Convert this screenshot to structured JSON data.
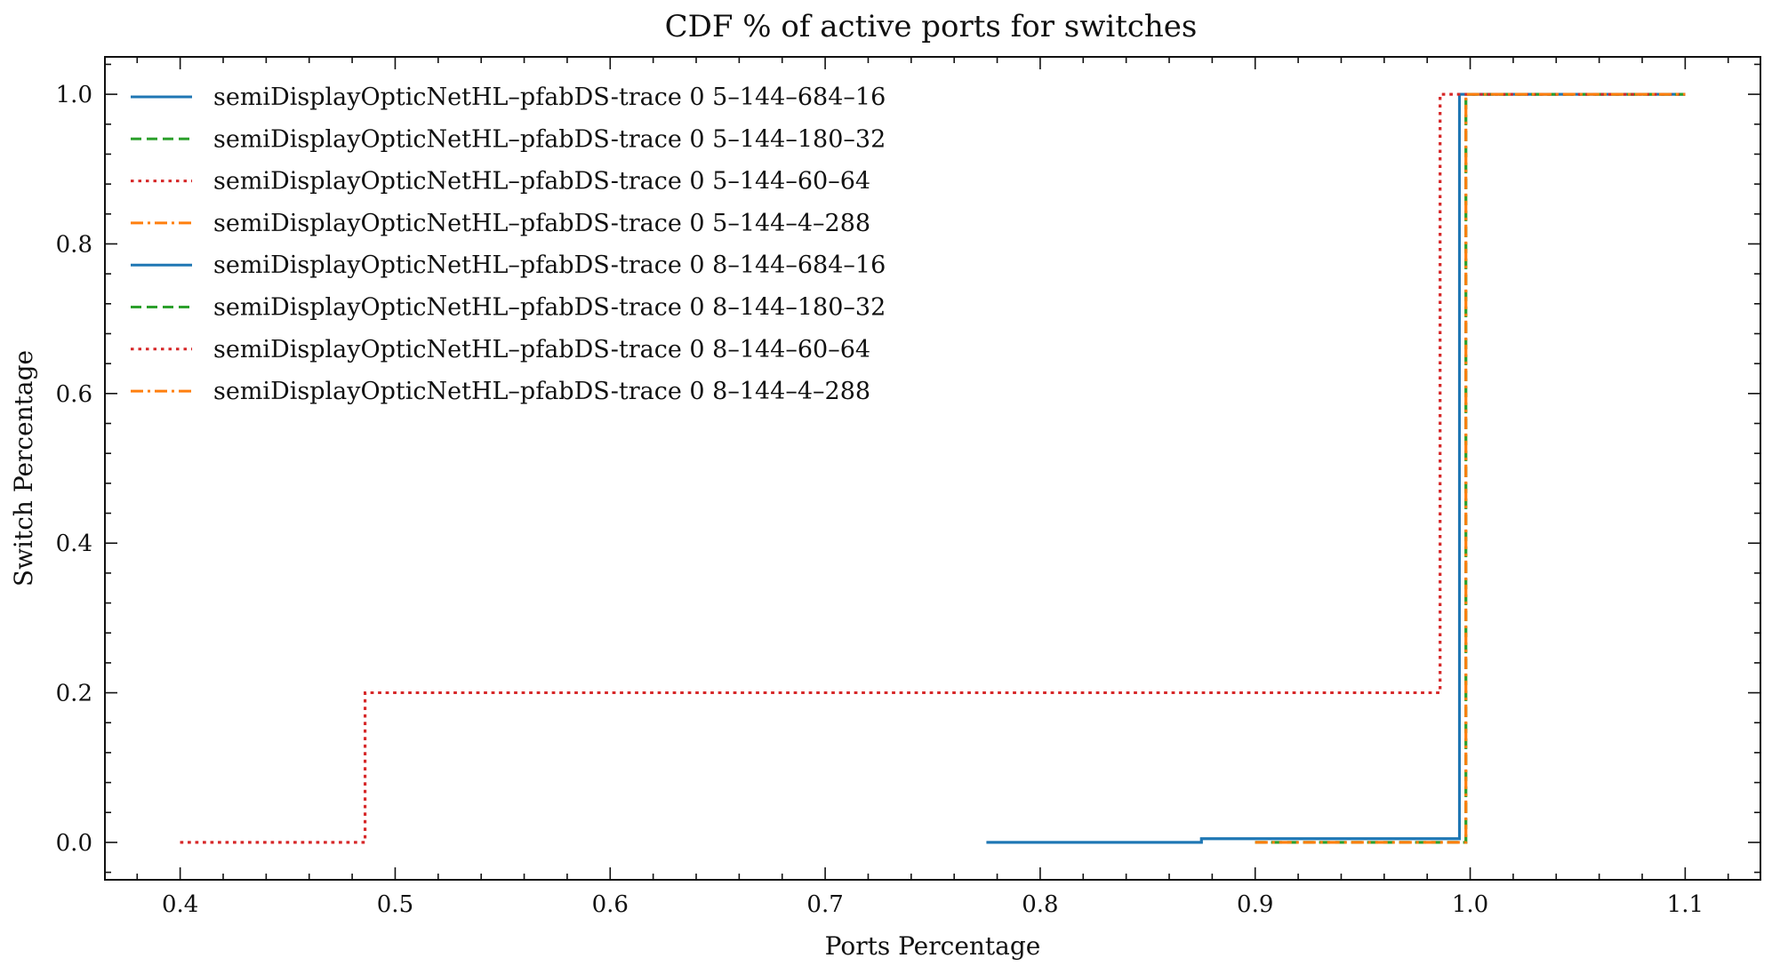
{
  "chart_data": {
    "type": "line",
    "step": true,
    "title": "CDF % of active ports for switches",
    "xlabel": "Ports Percentage",
    "ylabel": "Switch Percentage",
    "xlim": [
      0.365,
      1.135
    ],
    "ylim": [
      -0.05,
      1.05
    ],
    "xticks": [
      "0.4",
      "0.5",
      "0.6",
      "0.7",
      "0.8",
      "0.9",
      "1.0",
      "1.1"
    ],
    "yticks": [
      "0.0",
      "0.2",
      "0.4",
      "0.6",
      "0.8",
      "1.0"
    ],
    "grid": false,
    "legend_position": "upper-left",
    "series": [
      {
        "name": "semiDisplayOpticNetHL–pfabDS-trace 0 5–144–684–16",
        "color": "#1f77b4",
        "dash": "solid",
        "x": [
          0.775,
          0.875,
          0.995,
          1.1
        ],
        "y": [
          0.0,
          0.005,
          1.0,
          1.0
        ]
      },
      {
        "name": "semiDisplayOpticNetHL–pfabDS-trace 0 5–144–180–32",
        "color": "#2ca02c",
        "dash": "dashed",
        "x": [
          0.9,
          0.998,
          1.1
        ],
        "y": [
          0.0,
          1.0,
          1.0
        ]
      },
      {
        "name": "semiDisplayOpticNetHL–pfabDS-trace 0 5–144–60–64",
        "color": "#d62728",
        "dash": "dotted",
        "x": [
          0.4,
          0.486,
          0.986,
          1.1
        ],
        "y": [
          0.0,
          0.2,
          1.0,
          1.0
        ]
      },
      {
        "name": "semiDisplayOpticNetHL–pfabDS-trace 0 5–144–4–288",
        "color": "#ff7f0e",
        "dash": "dashdot",
        "x": [
          0.9,
          0.998,
          1.1
        ],
        "y": [
          0.0,
          1.0,
          1.0
        ]
      },
      {
        "name": "semiDisplayOpticNetHL–pfabDS-trace 0 8–144–684–16",
        "color": "#1f77b4",
        "dash": "solid",
        "x": [
          0.775,
          0.875,
          0.995,
          1.1
        ],
        "y": [
          0.0,
          0.005,
          1.0,
          1.0
        ]
      },
      {
        "name": "semiDisplayOpticNetHL–pfabDS-trace 0 8–144–180–32",
        "color": "#2ca02c",
        "dash": "dashed",
        "x": [
          0.9,
          0.998,
          1.1
        ],
        "y": [
          0.0,
          1.0,
          1.0
        ]
      },
      {
        "name": "semiDisplayOpticNetHL–pfabDS-trace 0 8–144–60–64",
        "color": "#d62728",
        "dash": "dotted",
        "x": [
          0.4,
          0.486,
          0.986,
          1.1
        ],
        "y": [
          0.0,
          0.2,
          1.0,
          1.0
        ]
      },
      {
        "name": "semiDisplayOpticNetHL–pfabDS-trace 0 8–144–4–288",
        "color": "#ff7f0e",
        "dash": "dashdot",
        "x": [
          0.9,
          0.998,
          1.1
        ],
        "y": [
          0.0,
          1.0,
          1.0
        ]
      }
    ]
  }
}
